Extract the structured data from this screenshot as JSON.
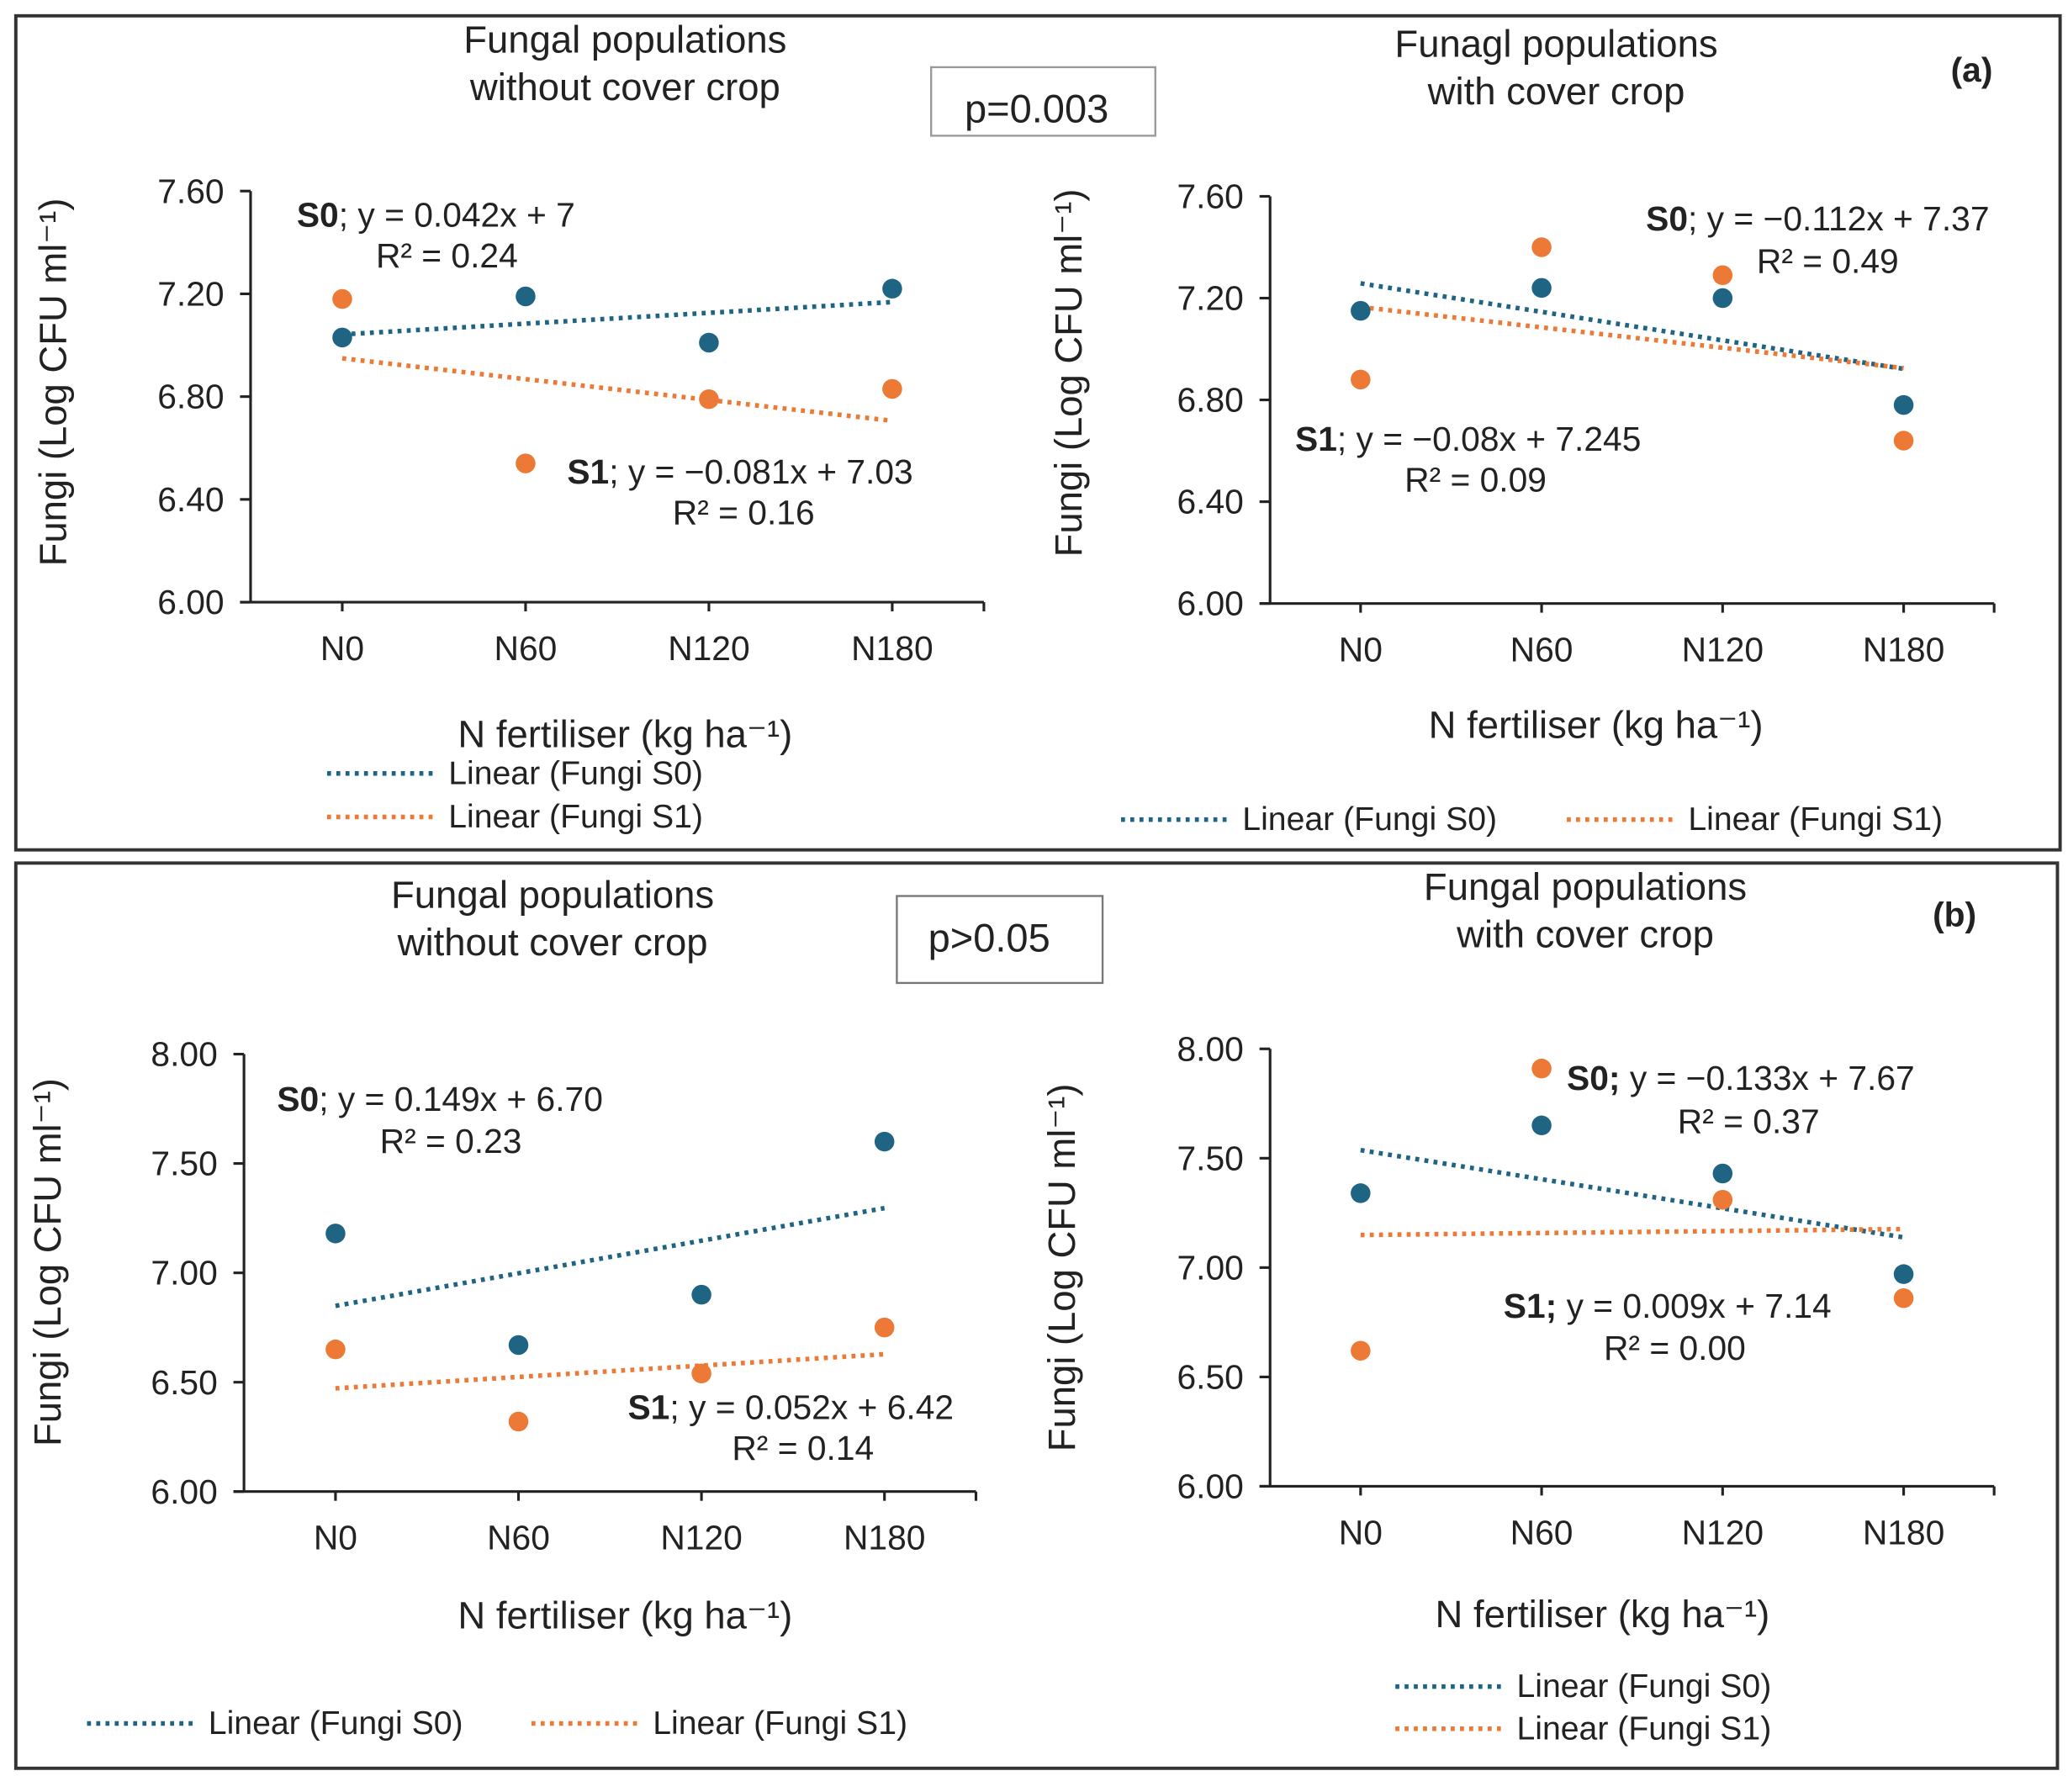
{
  "colors": {
    "s0": "#1f6482",
    "s1": "#ec7a36",
    "axis": "#222222",
    "frame": "#333333"
  },
  "panels": [
    {
      "label": "(a)",
      "p_value": "p=0.003"
    },
    {
      "label": "(b)",
      "p_value": "p>0.05"
    }
  ],
  "chart_data": [
    {
      "type": "scatter",
      "panel": "(a)",
      "title": [
        "Fungal populations",
        "without cover crop"
      ],
      "xlabel": "N fertiliser (kg ha⁻¹)",
      "ylabel": "Fungi (Log CFU ml⁻¹)",
      "categories": [
        "N0",
        "N60",
        "N120",
        "N180"
      ],
      "ylim": [
        6.0,
        7.6
      ],
      "yticks": [
        "6.00",
        "6.40",
        "6.80",
        "7.20",
        "7.60"
      ],
      "series": [
        {
          "name": "Fungi S0",
          "values": [
            7.03,
            7.19,
            7.01,
            7.22
          ],
          "trend": {
            "slope": 0.042,
            "intercept": 7.0
          },
          "eq_bold": "S0",
          "eq": "; y = 0.042x + 7",
          "r2": "R² = 0.24",
          "legend": "Linear (Fungi S0)"
        },
        {
          "name": "Fungi S1",
          "values": [
            7.18,
            6.54,
            6.79,
            6.83
          ],
          "trend": {
            "slope": -0.081,
            "intercept": 7.03
          },
          "eq_bold": "S1",
          "eq": "; y = −0.081x + 7.03",
          "r2": "R² = 0.16",
          "legend": "Linear (Fungi S1)"
        }
      ],
      "legend_placement": "bottom-stacked"
    },
    {
      "type": "scatter",
      "panel": "(a)",
      "title": [
        "Funagl populations",
        "with cover crop"
      ],
      "xlabel": "N fertiliser (kg ha⁻¹)",
      "ylabel": "Fungi (Log CFU ml⁻¹)",
      "categories": [
        "N0",
        "N60",
        "N120",
        "N180"
      ],
      "ylim": [
        6.0,
        7.6
      ],
      "yticks": [
        "6.00",
        "6.40",
        "6.80",
        "7.20",
        "7.60"
      ],
      "series": [
        {
          "name": "Fungi S0",
          "values": [
            7.15,
            7.24,
            7.2,
            6.78
          ],
          "trend": {
            "slope": -0.112,
            "intercept": 7.37
          },
          "eq_bold": "S0",
          "eq": "; y = −0.112x + 7.37",
          "r2": "R² = 0.49",
          "legend": "Linear (Fungi S0)"
        },
        {
          "name": "Fungi S1",
          "values": [
            6.88,
            7.4,
            7.29,
            6.64
          ],
          "trend": {
            "slope": -0.08,
            "intercept": 7.245
          },
          "eq_bold": "S1",
          "eq": "; y = −0.08x + 7.245",
          "r2": "R² = 0.09",
          "legend": "Linear (Fungi S1)"
        }
      ],
      "legend_placement": "bottom-row"
    },
    {
      "type": "scatter",
      "panel": "(b)",
      "title": [
        "Fungal populations",
        "without cover crop"
      ],
      "xlabel": "N fertiliser (kg ha⁻¹)",
      "ylabel": "Fungi (Log CFU ml⁻¹)",
      "categories": [
        "N0",
        "N60",
        "N120",
        "N180"
      ],
      "ylim": [
        6.0,
        8.0
      ],
      "yticks": [
        "6.00",
        "6.50",
        "7.00",
        "7.50",
        "8.00"
      ],
      "series": [
        {
          "name": "Fungi S0",
          "values": [
            7.18,
            6.67,
            6.9,
            7.6
          ],
          "trend": {
            "slope": 0.149,
            "intercept": 6.7
          },
          "eq_bold": "S0",
          "eq": "; y = 0.149x + 6.70",
          "r2": "R² = 0.23",
          "legend": "Linear (Fungi S0)"
        },
        {
          "name": "Fungi S1",
          "values": [
            6.65,
            6.32,
            6.54,
            6.75
          ],
          "trend": {
            "slope": 0.052,
            "intercept": 6.42
          },
          "eq_bold": "S1",
          "eq": "; y = 0.052x + 6.42",
          "r2": "R² = 0.14",
          "legend": "Linear (Fungi S1)"
        }
      ],
      "legend_placement": "bottom-row"
    },
    {
      "type": "scatter",
      "panel": "(b)",
      "title": [
        "Fungal populations",
        "with cover crop"
      ],
      "xlabel": "N fertiliser (kg ha⁻¹)",
      "ylabel": "Fungi (Log CFU ml⁻¹)",
      "categories": [
        "N0",
        "N60",
        "N120",
        "N180"
      ],
      "ylim": [
        6.0,
        8.0
      ],
      "yticks": [
        "6.00",
        "6.50",
        "7.00",
        "7.50",
        "8.00"
      ],
      "series": [
        {
          "name": "Fungi S0",
          "values": [
            7.34,
            7.65,
            7.43,
            6.97
          ],
          "trend": {
            "slope": -0.133,
            "intercept": 7.67
          },
          "eq_bold": "S0;",
          "eq": " y = −0.133x + 7.67",
          "r2": "R² = 0.37",
          "legend": "Linear (Fungi S0)"
        },
        {
          "name": "Fungi S1",
          "values": [
            6.62,
            7.91,
            7.31,
            6.86
          ],
          "trend": {
            "slope": 0.009,
            "intercept": 7.14
          },
          "eq_bold": "S1;",
          "eq": " y = 0.009x + 7.14",
          "r2": "R² = 0.00",
          "legend": "Linear (Fungi S1)"
        }
      ],
      "legend_placement": "bottom-stacked"
    }
  ]
}
